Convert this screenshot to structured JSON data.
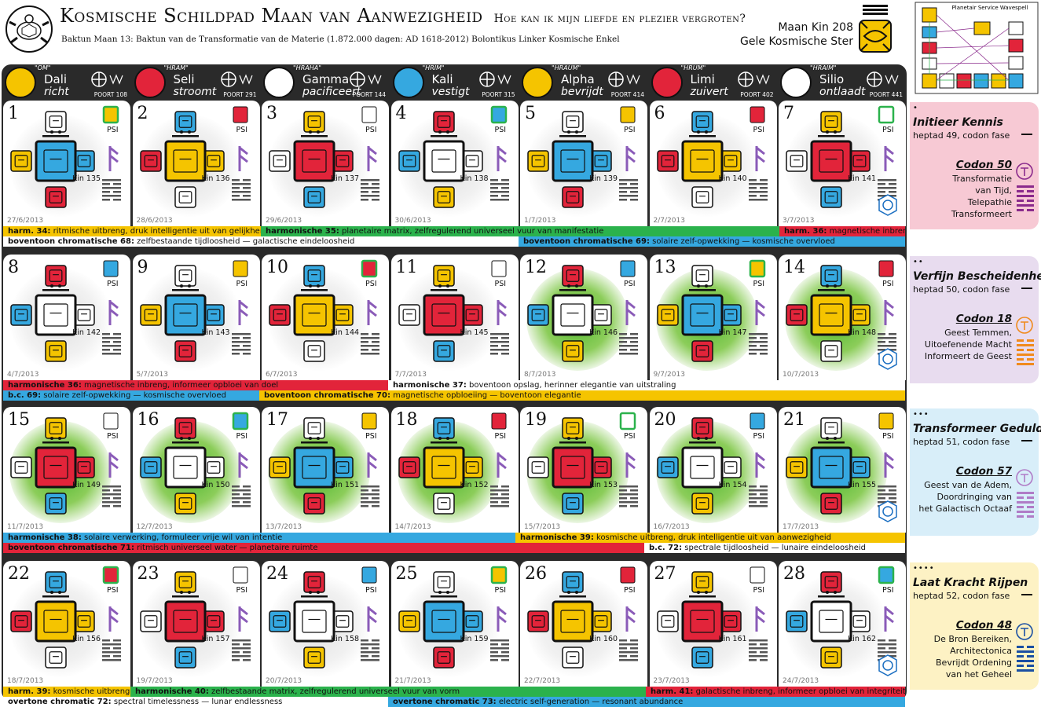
{
  "header": {
    "title": "Kosmische Schildpad Maan van Aanwezigheid",
    "question": "Hoe kan ik mijn liefde en plezier vergroten?",
    "subtitle": "Baktun Maan 13: Baktun van de Transformatie van de Materie (1.872.000 dagen: AD 1618-2012) Bolontikus Linker Kosmische Enkel",
    "kin": "Maan Kin 208",
    "kin_name": "Gele Kosmische Ster",
    "wavespell_title": "Planetair Service Wavespell"
  },
  "plasmas": [
    {
      "om": "\"OM\"",
      "name": "Dali",
      "verb": "richt",
      "poort": "POORT 108",
      "color": "#f5c400",
      "light": false
    },
    {
      "om": "\"HRAM\"",
      "name": "Seli",
      "verb": "stroomt",
      "poort": "POORT 291",
      "color": "#e2243a",
      "light": false
    },
    {
      "om": "\"HRAHA\"",
      "name": "Gamma",
      "verb": "pacificeert",
      "poort": "POORT 144",
      "color": "#ffffff",
      "light": true
    },
    {
      "om": "\"HRIM\"",
      "name": "Kali",
      "verb": "vestigt",
      "poort": "POORT 315",
      "color": "#35a8e0",
      "light": false
    },
    {
      "om": "\"HRAUM\"",
      "name": "Alpha",
      "verb": "bevrijdt",
      "poort": "POORT 414",
      "color": "#f5c400",
      "light": false
    },
    {
      "om": "\"HRUM\"",
      "name": "Limi",
      "verb": "zuivert",
      "poort": "POORT 402",
      "color": "#e2243a",
      "light": false
    },
    {
      "om": "\"HRAIM\"",
      "name": "Silio",
      "verb": "ontlaadt",
      "poort": "POORT 441",
      "color": "#ffffff",
      "light": true
    }
  ],
  "psi_label": "PSI",
  "weeks": [
    {
      "days": [
        {
          "n": "1",
          "date": "27/6/2013",
          "kin": "Kin 135",
          "color": "#35a8e0",
          "halo": false
        },
        {
          "n": "2",
          "date": "28/6/2013",
          "kin": "Kin 136",
          "color": "#f5c400",
          "halo": false
        },
        {
          "n": "3",
          "date": "29/6/2013",
          "kin": "Kin 137",
          "color": "#e2243a",
          "halo": false
        },
        {
          "n": "4",
          "date": "30/6/2013",
          "kin": "Kin 138",
          "color": "#ffffff",
          "halo": false
        },
        {
          "n": "5",
          "date": "1/7/2013",
          "kin": "Kin 139",
          "color": "#35a8e0",
          "halo": false
        },
        {
          "n": "6",
          "date": "2/7/2013",
          "kin": "Kin 140",
          "color": "#f5c400",
          "halo": false
        },
        {
          "n": "7",
          "date": "3/7/2013",
          "kin": "Kin 141",
          "color": "#e2243a",
          "halo": false
        }
      ],
      "bands": [
        {
          "prefix": "harm. 34:",
          "text": " ritmische uitbreng, druk intelligentie uit van gelijkheid",
          "color": "#f5c400"
        },
        {
          "prefix": "harmonische 35:",
          "text": " planetaire matrix, zelfregulerend universeel vuur van manifestatie",
          "color": "#2bb24c"
        },
        {
          "prefix": "harm. 36:",
          "text": " magnetische inbreng",
          "color": "#e2243a"
        },
        {
          "prefix": "boventoon chromatische 68:",
          "text": " zelfbestaande tijdloosheid — galactische eindeloosheid",
          "color": "#ffffff"
        },
        {
          "prefix": "boventoon chromatische 69:",
          "text": " solaire zelf-opwekking — kosmische overvloed",
          "color": "#35a8e0"
        }
      ],
      "side": {
        "dots": "•",
        "title": "Initieer Kennis",
        "heptad": "heptad 49, codon fase",
        "codon": "Codon 50",
        "desc": [
          "Transformatie",
          "van Tijd,",
          "Telepathie",
          "Transformeert"
        ],
        "color": "#f7c9d4",
        "accent": "#8a2a8c"
      }
    },
    {
      "days": [
        {
          "n": "8",
          "date": "4/7/2013",
          "kin": "Kin 142",
          "color": "#ffffff",
          "halo": false
        },
        {
          "n": "9",
          "date": "5/7/2013",
          "kin": "Kin 143",
          "color": "#35a8e0",
          "halo": false
        },
        {
          "n": "10",
          "date": "6/7/2013",
          "kin": "Kin 144",
          "color": "#f5c400",
          "halo": false
        },
        {
          "n": "11",
          "date": "7/7/2013",
          "kin": "Kin 145",
          "color": "#e2243a",
          "halo": false
        },
        {
          "n": "12",
          "date": "8/7/2013",
          "kin": "Kin 146",
          "color": "#ffffff",
          "halo": true
        },
        {
          "n": "13",
          "date": "9/7/2013",
          "kin": "Kin 147",
          "color": "#35a8e0",
          "halo": true
        },
        {
          "n": "14",
          "date": "10/7/2013",
          "kin": "Kin 148",
          "color": "#f5c400",
          "halo": true
        }
      ],
      "bands": [
        {
          "prefix": "harmonische 36:",
          "text": " magnetische inbreng, informeer opbloei van doel",
          "color": "#e2243a"
        },
        {
          "prefix": "harmonische 37:",
          "text": " boventoon opslag, herinner elegantie van uitstraling",
          "color": "#ffffff"
        },
        {
          "prefix": "b.c. 69:",
          "text": " solaire zelf-opwekking — kosmische overvloed",
          "color": "#35a8e0"
        },
        {
          "prefix": "boventoon chromatische 70:",
          "text": " magnetische opbloeiing — boventoon elegantie",
          "color": "#f5c400"
        }
      ],
      "side": {
        "dots": "••",
        "title": "Verfijn Bescheidenheid",
        "heptad": "heptad 50, codon fase",
        "codon": "Codon 18",
        "desc": [
          "Geest Temmen,",
          "Uitoefenende Macht",
          "Informeert de Geest"
        ],
        "color": "#e8dcef",
        "accent": "#f08a1c"
      }
    },
    {
      "days": [
        {
          "n": "15",
          "date": "11/7/2013",
          "kin": "Kin 149",
          "color": "#e2243a",
          "halo": true
        },
        {
          "n": "16",
          "date": "12/7/2013",
          "kin": "Kin 150",
          "color": "#ffffff",
          "halo": true
        },
        {
          "n": "17",
          "date": "13/7/2013",
          "kin": "Kin 151",
          "color": "#35a8e0",
          "halo": true
        },
        {
          "n": "18",
          "date": "14/7/2013",
          "kin": "Kin 152",
          "color": "#f5c400",
          "halo": true
        },
        {
          "n": "19",
          "date": "15/7/2013",
          "kin": "Kin 153",
          "color": "#e2243a",
          "halo": true
        },
        {
          "n": "20",
          "date": "16/7/2013",
          "kin": "Kin 154",
          "color": "#ffffff",
          "halo": true
        },
        {
          "n": "21",
          "date": "17/7/2013",
          "kin": "Kin 155",
          "color": "#35a8e0",
          "halo": true
        }
      ],
      "bands": [
        {
          "prefix": "harmonische 38:",
          "text": " solaire verwerking, formuleer vrije wil van intentie",
          "color": "#35a8e0"
        },
        {
          "prefix": "harmonische 39:",
          "text": " kosmische uitbreng, druk intelligentie uit van aanwezigheid",
          "color": "#f5c400"
        },
        {
          "prefix": "boventoon chromatische 71:",
          "text": " ritmisch universeel water — planetaire ruimte",
          "color": "#e2243a"
        },
        {
          "prefix": "b.c. 72:",
          "text": " spectrale tijdloosheid — lunaire eindeloosheid",
          "color": "#ffffff"
        }
      ],
      "side": {
        "dots": "•••",
        "title": "Transformeer Geduld",
        "heptad": "heptad 51, codon fase",
        "codon": "Codon 57",
        "desc": [
          "Geest van de Adem,",
          "Doordringing van",
          "het Galactisch Octaaf"
        ],
        "color": "#d8eef9",
        "accent": "#b07cc7"
      }
    },
    {
      "days": [
        {
          "n": "22",
          "date": "18/7/2013",
          "kin": "Kin 156",
          "color": "#f5c400",
          "halo": false
        },
        {
          "n": "23",
          "date": "19/7/2013",
          "kin": "Kin 157",
          "color": "#e2243a",
          "halo": false
        },
        {
          "n": "24",
          "date": "20/7/2013",
          "kin": "Kin 158",
          "color": "#ffffff",
          "halo": false
        },
        {
          "n": "25",
          "date": "21/7/2013",
          "kin": "Kin 159",
          "color": "#35a8e0",
          "halo": false
        },
        {
          "n": "26",
          "date": "22/7/2013",
          "kin": "Kin 160",
          "color": "#f5c400",
          "halo": false
        },
        {
          "n": "27",
          "date": "23/7/2013",
          "kin": "Kin 161",
          "color": "#e2243a",
          "halo": false
        },
        {
          "n": "28",
          "date": "24/7/2013",
          "kin": "Kin 162",
          "color": "#ffffff",
          "halo": false
        }
      ],
      "bands": [
        {
          "prefix": "harm. 39:",
          "text": " kosmische uitbreng",
          "color": "#f5c400"
        },
        {
          "prefix": "harmonische 40:",
          "text": " zelfbestaande matrix, zelfregulerend universeel vuur van vorm",
          "color": "#2bb24c"
        },
        {
          "prefix": "harm. 41:",
          "text": " galactische inbreng, informeer opbloei van integriteit",
          "color": "#e2243a"
        },
        {
          "prefix": "overtone chromatic 72:",
          "text": " spectral timelessness — lunar endlessness",
          "color": "#ffffff"
        },
        {
          "prefix": "overtone chromatic 73:",
          "text": " electric self-generation — resonant abundance",
          "color": "#35a8e0"
        }
      ],
      "side": {
        "dots": "••••",
        "title": "Laat Kracht Rijpen",
        "heptad": "heptad 52, codon fase",
        "codon": "Codon 48",
        "desc": [
          "De Bron Bereiken,",
          "Architectonica",
          "Bevrijdt Ordening",
          "van het Geheel"
        ],
        "color": "#fdf2c4",
        "accent": "#1a4fa3"
      }
    }
  ]
}
